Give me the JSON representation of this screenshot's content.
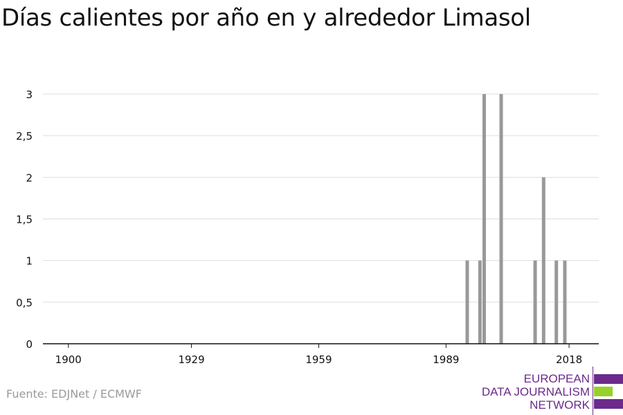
{
  "title": "Días calientes por año en y alrededor Limasol",
  "source": "Fuente: EDJNet / ECMWF",
  "logo": {
    "line1": "EUROPEAN",
    "line2": "DATA JOURNALISM",
    "line3": "NETWORK",
    "colors": {
      "purple": "#6b2a8c",
      "green": "#97d12c"
    }
  },
  "colors": {
    "bar": "#999999",
    "grid": "#dddddd",
    "axis": "#111111"
  },
  "chart_data": {
    "type": "bar",
    "x": [
      1994,
      1997,
      1998,
      2002,
      2010,
      2012,
      2015,
      2017
    ],
    "values": [
      1,
      1,
      3,
      3,
      1,
      2,
      1,
      1
    ],
    "xlim": [
      1894,
      2025
    ],
    "ylim": [
      0,
      3
    ],
    "xticks": [
      1900,
      1929,
      1959,
      1989,
      2018
    ],
    "yticks": [
      {
        "value": 0,
        "label": "0"
      },
      {
        "value": 0.5,
        "label": "0,5"
      },
      {
        "value": 1,
        "label": "1"
      },
      {
        "value": 1.5,
        "label": "1,5"
      },
      {
        "value": 2,
        "label": "2"
      },
      {
        "value": 2.5,
        "label": "2,5"
      },
      {
        "value": 3,
        "label": "3"
      }
    ],
    "grid": true,
    "legend": false
  }
}
